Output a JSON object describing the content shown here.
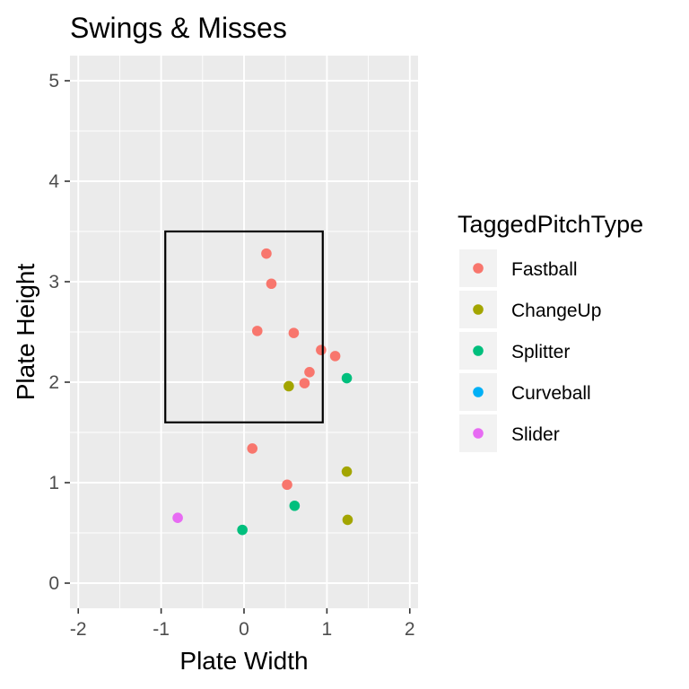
{
  "chart_data": {
    "type": "scatter",
    "title": "Swings & Misses",
    "xlabel": "Plate Width",
    "ylabel": "Plate Height",
    "xlim": [
      -2.1,
      2.1
    ],
    "ylim": [
      -0.25,
      5.25
    ],
    "x_ticks": [
      "-2",
      "-1",
      "0",
      "1",
      "2"
    ],
    "y_ticks": [
      "0",
      "1",
      "2",
      "3",
      "4",
      "5"
    ],
    "x_tick_values": [
      -2,
      -1,
      0,
      1,
      2
    ],
    "y_tick_values": [
      0,
      1,
      2,
      3,
      4,
      5
    ],
    "grid": true,
    "legend": {
      "title": "TaggedPitchType",
      "position": "right"
    },
    "strike_zone": {
      "x": [
        -0.95,
        0.95
      ],
      "y": [
        1.6,
        3.5
      ]
    },
    "series": [
      {
        "name": "Fastball",
        "color": "#f8766d",
        "points": [
          [
            0.27,
            3.28
          ],
          [
            0.33,
            2.98
          ],
          [
            0.16,
            2.51
          ],
          [
            0.6,
            2.49
          ],
          [
            0.93,
            2.32
          ],
          [
            1.1,
            2.26
          ],
          [
            0.79,
            2.1
          ],
          [
            0.73,
            1.99
          ],
          [
            0.1,
            1.34
          ],
          [
            0.52,
            0.98
          ]
        ]
      },
      {
        "name": "ChangeUp",
        "color": "#a3a500",
        "points": [
          [
            0.54,
            1.96
          ],
          [
            1.24,
            1.11
          ],
          [
            1.25,
            0.63
          ]
        ]
      },
      {
        "name": "Splitter",
        "color": "#00bf7d",
        "points": [
          [
            1.24,
            2.04
          ],
          [
            0.61,
            0.77
          ],
          [
            -0.02,
            0.53
          ]
        ]
      },
      {
        "name": "Curveball",
        "color": "#00b0f6",
        "points": []
      },
      {
        "name": "Slider",
        "color": "#e76bf3",
        "points": [
          [
            -0.8,
            0.65
          ]
        ]
      }
    ]
  }
}
